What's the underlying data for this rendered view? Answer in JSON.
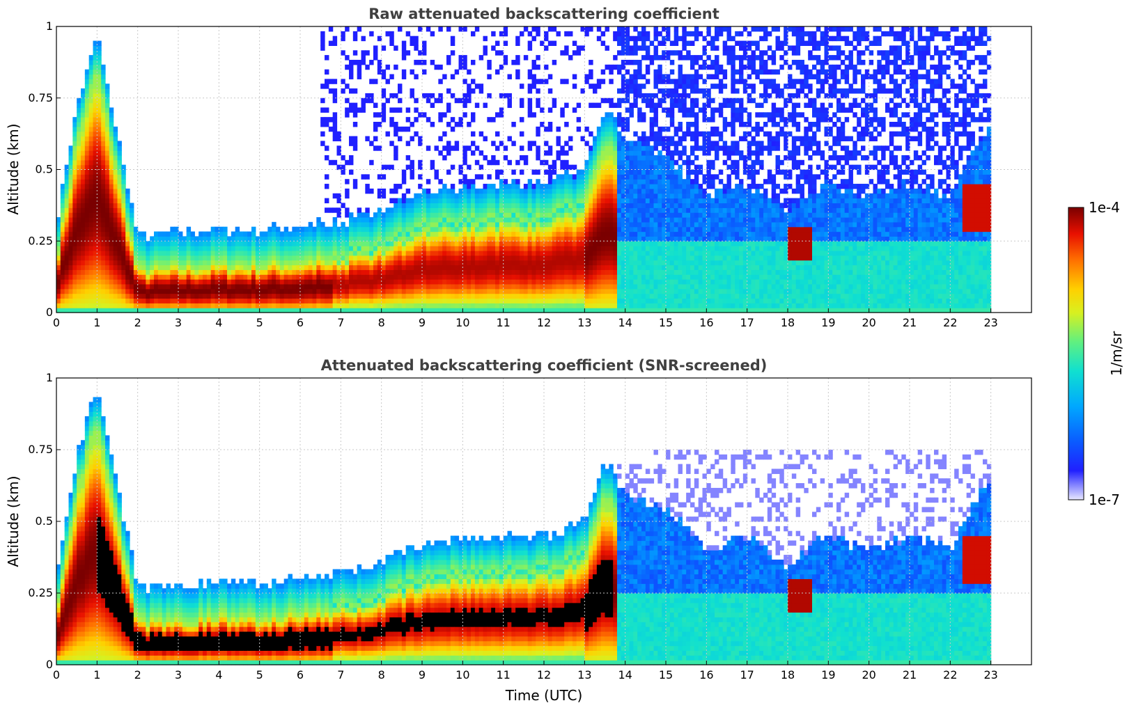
{
  "chart_data": [
    {
      "type": "heatmap",
      "title": "Raw attenuated backscattering coefficient",
      "xlabel": "",
      "ylabel": "Altitude (km)",
      "xlim": [
        0,
        24
      ],
      "ylim": [
        0,
        1
      ],
      "x_ticks": [
        "0",
        "1",
        "2",
        "3",
        "4",
        "5",
        "6",
        "7",
        "8",
        "9",
        "10",
        "11",
        "12",
        "13",
        "14",
        "15",
        "16",
        "17",
        "18",
        "19",
        "20",
        "21",
        "22",
        "23"
      ],
      "y_ticks": [
        "0",
        "0.25",
        "0.5",
        "0.75",
        "1"
      ],
      "grid": true,
      "data_end_time": 23,
      "layer_top_km": {
        "t": [
          0,
          0.5,
          1,
          2,
          3,
          4,
          5,
          6,
          7,
          8,
          9,
          10,
          11,
          12,
          13,
          13.5,
          14,
          15,
          16,
          17,
          18,
          19,
          20,
          21,
          22,
          22.5,
          23
        ],
        "h": [
          0.2,
          0.6,
          0.85,
          0.15,
          0.16,
          0.17,
          0.17,
          0.18,
          0.2,
          0.24,
          0.3,
          0.32,
          0.33,
          0.33,
          0.38,
          0.6,
          0.5,
          0.45,
          0.3,
          0.35,
          0.25,
          0.35,
          0.3,
          0.35,
          0.3,
          0.45,
          0.55
        ]
      },
      "noise_color": "#1a2bff",
      "clear_color": "#ffffff"
    },
    {
      "type": "heatmap",
      "title": "Attenuated backscattering coefficient (SNR-screened)",
      "xlabel": "Time (UTC)",
      "ylabel": "Altitude (km)",
      "xlim": [
        0,
        24
      ],
      "ylim": [
        0,
        1
      ],
      "x_ticks": [
        "0",
        "1",
        "2",
        "3",
        "4",
        "5",
        "6",
        "7",
        "8",
        "9",
        "10",
        "11",
        "12",
        "13",
        "14",
        "15",
        "16",
        "17",
        "18",
        "19",
        "20",
        "21",
        "22",
        "23"
      ],
      "y_ticks": [
        "0",
        "0.25",
        "0.5",
        "0.75",
        "1"
      ],
      "grid": true,
      "data_end_time": 23,
      "saturation_color": "#000000"
    }
  ],
  "colorbar": {
    "label": "1/m/sr",
    "max_label": "1e-4",
    "min_label": "1e-7",
    "stops": [
      "#e8e8ff",
      "#2020ff",
      "#0a5cff",
      "#00a8ff",
      "#10e0d0",
      "#60f080",
      "#d8f020",
      "#ffd000",
      "#ff7000",
      "#e81000",
      "#7a0000"
    ]
  }
}
